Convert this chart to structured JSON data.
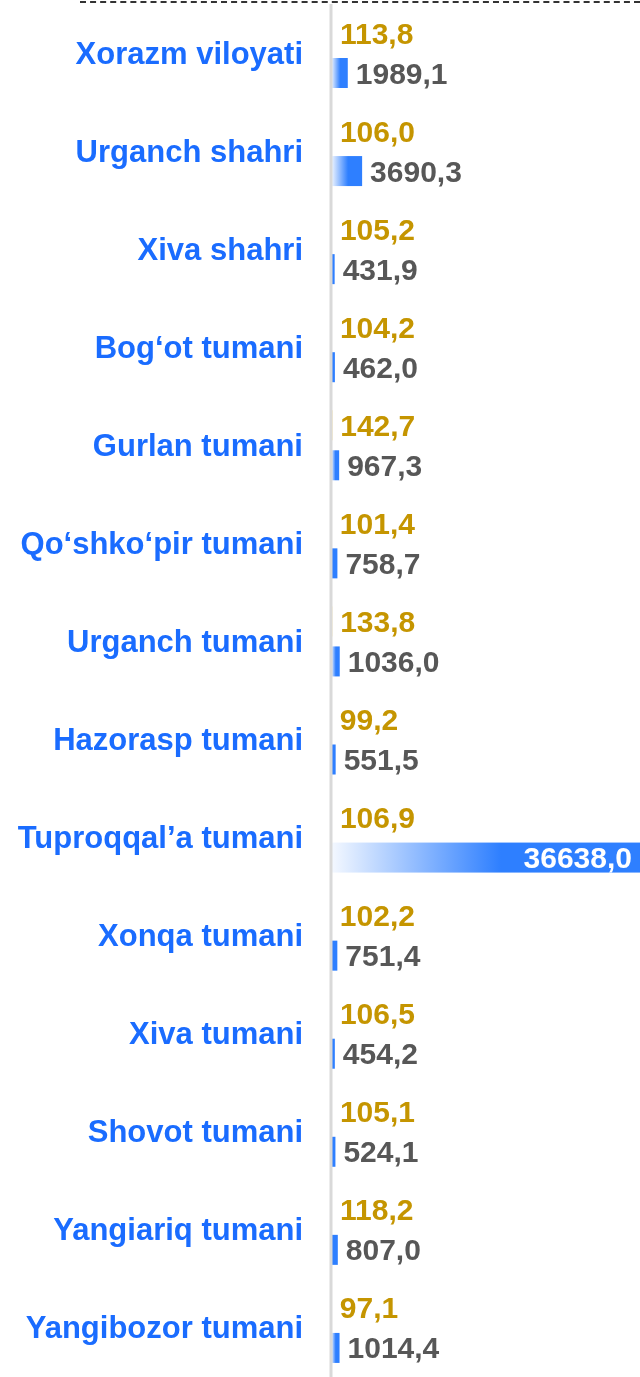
{
  "chart_data": {
    "type": "bar",
    "orientation": "horizontal",
    "categories": [
      "Xorazm viloyati",
      "Urganch shahri",
      "Xiva shahri",
      "Bog‘ot tumani",
      "Gurlan tumani",
      "Qo‘shko‘pir tumani",
      "Urganch tumani",
      "Hazorasp tumani",
      "Tuproqqal’a tumani",
      "Xonqa tumani",
      "Xiva tumani",
      "Shovot tumani",
      "Yangiariq tumani",
      "Yangibozor tumani"
    ],
    "series": [
      {
        "color": "#f2b705",
        "values": [
          113.8,
          106.0,
          105.2,
          104.2,
          142.7,
          101.4,
          133.8,
          99.2,
          106.9,
          102.2,
          106.5,
          105.1,
          118.2,
          97.1
        ],
        "value_labels": [
          "113,8",
          "106,0",
          "105,2",
          "104,2",
          "142,7",
          "101,4",
          "133,8",
          "99,2",
          "106,9",
          "102,2",
          "106,5",
          "105,1",
          "118,2",
          "97,1"
        ]
      },
      {
        "color": "#2e7fff",
        "values": [
          1989.1,
          3690.3,
          431.9,
          462.0,
          967.3,
          758.7,
          1036.0,
          551.5,
          36638.0,
          751.4,
          454.2,
          524.1,
          807.0,
          1014.4
        ],
        "value_labels": [
          "1989,1",
          "3690,3",
          "431,9",
          "462,0",
          "967,3",
          "758,7",
          "1036,0",
          "551,5",
          "36638,0",
          "751,4",
          "454,2",
          "524,1",
          "807,0",
          "1014,4"
        ]
      }
    ]
  }
}
